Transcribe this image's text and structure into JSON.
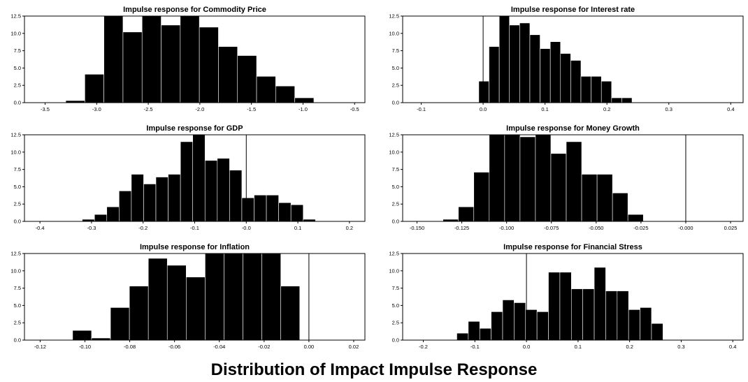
{
  "figure": {
    "title": "Distribution of Impact Impulse Response"
  },
  "colors": {
    "bar_fill": "#000000",
    "bar_edge": "#ffffff",
    "axis": "#000000"
  },
  "chart_data": [
    {
      "type": "bar",
      "title": "Impulse response for Commodity Price",
      "xlim": [
        -3.7,
        -0.4
      ],
      "ylim": [
        0,
        12.5
      ],
      "xticks": [
        -3.5,
        -3.0,
        -2.5,
        -2.0,
        -1.5,
        -1.0,
        -0.5
      ],
      "xtick_labels": [
        "-3.5",
        "-3.0",
        "-2.5",
        "-2.0",
        "-1.5",
        "-1.0",
        "-0.5"
      ],
      "yticks": [
        0,
        2.5,
        5,
        7.5,
        10,
        12.5
      ],
      "ytick_labels": [
        "0.0",
        "2.5",
        "5.0",
        "7.5",
        "10.0",
        "12.5"
      ],
      "vline": null,
      "bins_start": -3.3,
      "bin_width": 0.185,
      "values": [
        0.3,
        4.1,
        12.5,
        10.2,
        12.5,
        11.2,
        12.5,
        10.9,
        8.1,
        6.8,
        3.8,
        2.4,
        0.7
      ]
    },
    {
      "type": "bar",
      "title": "Impulse response for Interest rate",
      "xlim": [
        -0.13,
        0.42
      ],
      "ylim": [
        0,
        12.5
      ],
      "xticks": [
        -0.1,
        0.0,
        0.1,
        0.2,
        0.3,
        0.4
      ],
      "xtick_labels": [
        "-0.1",
        "0.0",
        "0.1",
        "0.2",
        "0.3",
        "0.4"
      ],
      "yticks": [
        0,
        2.5,
        5,
        7.5,
        10,
        12.5
      ],
      "ytick_labels": [
        "0.0",
        "2.5",
        "5.0",
        "7.5",
        "10.0",
        "12.5"
      ],
      "vline": 0.0,
      "bins_start": -0.007,
      "bin_width": 0.0165,
      "values": [
        3.1,
        8.1,
        12.5,
        11.2,
        11.5,
        9.8,
        7.8,
        8.8,
        7.1,
        6.1,
        3.8,
        3.8,
        3.1,
        0.7,
        0.7
      ]
    },
    {
      "type": "bar",
      "title": "Impulse response for GDP",
      "xlim": [
        -0.43,
        0.23
      ],
      "ylim": [
        0,
        12.5
      ],
      "xticks": [
        -0.4,
        -0.3,
        -0.2,
        -0.1,
        0.0,
        0.1,
        0.2
      ],
      "xtick_labels": [
        "-0.4",
        "-0.3",
        "-0.2",
        "-0.1",
        "-0.0",
        "0.1",
        "0.2"
      ],
      "yticks": [
        0,
        2.5,
        5,
        7.5,
        10,
        12.5
      ],
      "ytick_labels": [
        "0.0",
        "2.5",
        "5.0",
        "7.5",
        "10.0",
        "12.5"
      ],
      "vline": 0.0,
      "bins_start": -0.318,
      "bin_width": 0.0238,
      "values": [
        0.3,
        1.0,
        2.1,
        4.4,
        6.8,
        5.4,
        6.4,
        6.8,
        11.5,
        12.5,
        8.8,
        9.1,
        7.4,
        3.4,
        3.8,
        3.8,
        2.7,
        2.4,
        0.3
      ]
    },
    {
      "type": "bar",
      "title": "Impulse response for Money Growth",
      "xlim": [
        -0.158,
        0.032
      ],
      "ylim": [
        0,
        12.5
      ],
      "xticks": [
        -0.15,
        -0.125,
        -0.1,
        -0.075,
        -0.05,
        -0.025,
        0.0,
        0.025
      ],
      "xtick_labels": [
        "-0.150",
        "-0.125",
        "-0.100",
        "-0.075",
        "-0.050",
        "-0.025",
        "-0.000",
        "0.025"
      ],
      "yticks": [
        0,
        2.5,
        5,
        7.5,
        10,
        12.5
      ],
      "ytick_labels": [
        "0.0",
        "2.5",
        "5.0",
        "7.5",
        "10.0",
        "12.5"
      ],
      "vline": 0.0,
      "bins_start": -0.1355,
      "bin_width": 0.0086,
      "values": [
        0.3,
        2.1,
        7.1,
        12.5,
        12.5,
        12.2,
        12.5,
        9.8,
        11.5,
        6.8,
        6.8,
        4.1,
        1.0
      ]
    },
    {
      "type": "bar",
      "title": "Impulse response for Inflation",
      "xlim": [
        -0.127,
        0.025
      ],
      "ylim": [
        0,
        12.5
      ],
      "xticks": [
        -0.12,
        -0.1,
        -0.08,
        -0.06,
        -0.04,
        -0.02,
        0.0,
        0.02
      ],
      "xtick_labels": [
        "-0.12",
        "-0.10",
        "-0.08",
        "-0.06",
        "-0.04",
        "-0.02",
        "0.00",
        "0.02"
      ],
      "yticks": [
        0,
        2.5,
        5,
        7.5,
        10,
        12.5
      ],
      "ytick_labels": [
        "0.0",
        "2.5",
        "5.0",
        "7.5",
        "10.0",
        "12.5"
      ],
      "vline": 0.0,
      "bins_start": -0.1055,
      "bin_width": 0.00845,
      "values": [
        1.4,
        0.3,
        4.7,
        7.8,
        11.8,
        10.8,
        9.1,
        12.5,
        12.5,
        12.5,
        12.5,
        7.8
      ]
    },
    {
      "type": "bar",
      "title": "Impulse response for Financial Stress",
      "xlim": [
        -0.24,
        0.42
      ],
      "ylim": [
        0,
        12.5
      ],
      "xticks": [
        -0.2,
        -0.1,
        0.0,
        0.1,
        0.2,
        0.3,
        0.4
      ],
      "xtick_labels": [
        "-0.2",
        "-0.1",
        "0.0",
        "0.1",
        "0.2",
        "0.3",
        "0.4"
      ],
      "yticks": [
        0,
        2.5,
        5,
        7.5,
        10,
        12.5
      ],
      "ytick_labels": [
        "0.0",
        "2.5",
        "5.0",
        "7.5",
        "10.0",
        "12.5"
      ],
      "vline": 0.0,
      "bins_start": -0.135,
      "bin_width": 0.0222,
      "values": [
        1.0,
        2.7,
        1.7,
        4.1,
        5.8,
        5.4,
        4.4,
        4.1,
        9.8,
        9.8,
        7.4,
        7.4,
        10.5,
        7.1,
        7.1,
        4.4,
        4.7,
        2.4
      ]
    }
  ]
}
